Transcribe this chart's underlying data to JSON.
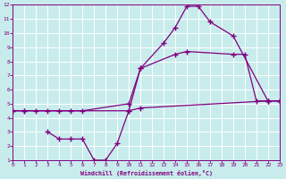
{
  "xlabel": "Windchill (Refroidissement éolien,°C)",
  "xlim": [
    0,
    23
  ],
  "ylim": [
    1,
    12
  ],
  "xticks": [
    0,
    1,
    2,
    3,
    4,
    5,
    6,
    7,
    8,
    9,
    10,
    11,
    12,
    13,
    14,
    15,
    16,
    17,
    18,
    19,
    20,
    21,
    22,
    23
  ],
  "yticks": [
    1,
    2,
    3,
    4,
    5,
    6,
    7,
    8,
    9,
    10,
    11,
    12
  ],
  "bg_color": "#c8ecec",
  "line_color": "#800080",
  "grid_color": "#ffffff",
  "line1_x": [
    0,
    1,
    10,
    11,
    13,
    14,
    15,
    16,
    17,
    19,
    22,
    23
  ],
  "line1_y": [
    4.5,
    4.5,
    4.5,
    7.5,
    9.3,
    10.4,
    11.9,
    11.9,
    10.8,
    9.8,
    5.2,
    5.2
  ],
  "line2_x": [
    0,
    1,
    2,
    3,
    4,
    5,
    6,
    10,
    11,
    14,
    15,
    19,
    20,
    21,
    22,
    23
  ],
  "line2_y": [
    4.5,
    4.5,
    4.5,
    4.5,
    4.5,
    4.5,
    4.5,
    5.0,
    7.5,
    8.5,
    8.7,
    8.5,
    8.5,
    5.2,
    5.2,
    5.2
  ],
  "line3_x": [
    3,
    4,
    5,
    6,
    7,
    8,
    9,
    10,
    11,
    22,
    23
  ],
  "line3_y": [
    3.0,
    2.5,
    2.5,
    2.5,
    1.0,
    1.0,
    2.2,
    4.5,
    4.7,
    5.2,
    5.2
  ]
}
